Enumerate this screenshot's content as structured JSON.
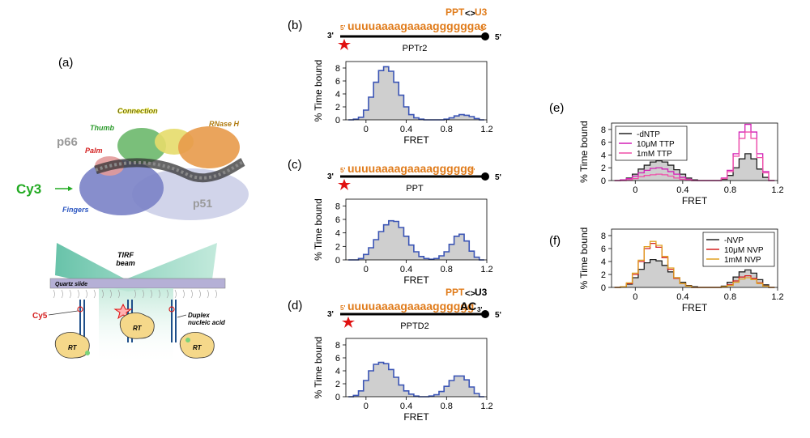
{
  "panels": {
    "a": {
      "label": "(a)",
      "domains": {
        "connection": "Connection",
        "thumb": "Thumb",
        "rnaseh": "RNase H",
        "p66": "p66",
        "palm": "Palm",
        "fingers": "Fingers",
        "p51": "p51"
      },
      "cy3": "Cy3",
      "tirf": "TIRF beam",
      "slide": "Quartz slide",
      "cy5": "Cy5",
      "duplex": "Duplex nucleic acid",
      "rt": [
        "RT",
        "RT",
        "RT"
      ]
    },
    "b": {
      "label": "(b)",
      "seq": "uuuuaaaagaaaaggggggac",
      "p5": "5'",
      "p3": "3'",
      "ppt": "PPT",
      "u3": "U3",
      "name": "PPTr2"
    },
    "c": {
      "label": "(c)",
      "seq": "uuuuaaaagaaaagggggg",
      "p5": "5'",
      "p3": "3'",
      "name": "PPT"
    },
    "d": {
      "label": "(d)",
      "seq": "uuuuaaaagaaaagggggg",
      "seq_suffix": "AC",
      "p5": "5'",
      "p3": "3'",
      "ppt": "PPT",
      "u3": "U3",
      "name": "PPTD2"
    },
    "e": {
      "label": "(e)"
    },
    "f": {
      "label": "(f)"
    },
    "strand_ends": {
      "left": "3'",
      "right": "5'"
    }
  },
  "colors": {
    "orange": "#e07b1a",
    "hist_blue": "#3b55b5",
    "gray_fill": "#cfcfcf",
    "magenta": "#d21fb5",
    "pink": "#ef4fa8",
    "red": "#d42020",
    "gold": "#e0a020",
    "star": "#e01010",
    "green_text": "#22aa22"
  },
  "chart_data": [
    {
      "type": "area",
      "panel": "b",
      "xlabel": "FRET",
      "ylabel": "% Time bound",
      "xlim": [
        -0.2,
        1.2
      ],
      "ylim": [
        0,
        9
      ],
      "xticks": [
        "0",
        "0.4",
        "0.8",
        "1.2"
      ],
      "yticks": [
        "0",
        "2",
        "4",
        "6",
        "8"
      ],
      "series": [
        {
          "color": "#3b55b5",
          "x": [
            -0.15,
            -0.1,
            -0.05,
            0,
            0.05,
            0.1,
            0.15,
            0.2,
            0.25,
            0.3,
            0.35,
            0.4,
            0.45,
            0.5,
            0.55,
            0.6,
            0.65,
            0.7,
            0.75,
            0.8,
            0.85,
            0.9,
            0.95,
            1.0,
            1.05,
            1.1,
            1.15
          ],
          "y": [
            0,
            0.1,
            0.4,
            1.5,
            3.5,
            5.8,
            7.6,
            8.2,
            7.5,
            5.8,
            3.8,
            2.0,
            0.8,
            0.3,
            0.1,
            0,
            0,
            0,
            0,
            0.1,
            0.3,
            0.6,
            0.8,
            0.7,
            0.5,
            0.2,
            0
          ]
        }
      ]
    },
    {
      "type": "area",
      "panel": "c",
      "xlabel": "FRET",
      "ylabel": "% Time bound",
      "xlim": [
        -0.2,
        1.2
      ],
      "ylim": [
        0,
        9
      ],
      "xticks": [
        "0",
        "0.4",
        "0.8",
        "1.2"
      ],
      "yticks": [
        "0",
        "2",
        "4",
        "6",
        "8"
      ],
      "series": [
        {
          "color": "#3b55b5",
          "x": [
            -0.15,
            -0.1,
            -0.05,
            0,
            0.05,
            0.1,
            0.15,
            0.2,
            0.25,
            0.3,
            0.35,
            0.4,
            0.45,
            0.5,
            0.55,
            0.6,
            0.65,
            0.7,
            0.75,
            0.8,
            0.85,
            0.9,
            0.95,
            1.0,
            1.05,
            1.1,
            1.15
          ],
          "y": [
            0,
            0,
            0.2,
            0.8,
            1.8,
            3.0,
            4.2,
            5.2,
            5.8,
            5.7,
            4.8,
            3.5,
            2.2,
            1.2,
            0.5,
            0.2,
            0.1,
            0.2,
            0.6,
            1.2,
            2.3,
            3.5,
            3.8,
            2.8,
            1.3,
            0.4,
            0
          ]
        }
      ]
    },
    {
      "type": "area",
      "panel": "d",
      "xlabel": "FRET",
      "ylabel": "% Time bound",
      "xlim": [
        -0.2,
        1.2
      ],
      "ylim": [
        0,
        9
      ],
      "xticks": [
        "0",
        "0.4",
        "0.8",
        "1.2"
      ],
      "yticks": [
        "0",
        "2",
        "4",
        "6",
        "8"
      ],
      "series": [
        {
          "color": "#3b55b5",
          "x": [
            -0.15,
            -0.1,
            -0.05,
            0,
            0.05,
            0.1,
            0.15,
            0.2,
            0.25,
            0.3,
            0.35,
            0.4,
            0.45,
            0.5,
            0.55,
            0.6,
            0.65,
            0.7,
            0.75,
            0.8,
            0.85,
            0.9,
            0.95,
            1.0,
            1.05,
            1.1,
            1.15
          ],
          "y": [
            0,
            0.2,
            0.9,
            2.5,
            4.0,
            5.0,
            5.3,
            5.1,
            4.2,
            3.0,
            1.8,
            0.9,
            0.4,
            0.1,
            0,
            0,
            0.1,
            0.3,
            0.8,
            1.6,
            2.5,
            3.2,
            3.2,
            2.6,
            1.5,
            0.5,
            0
          ]
        }
      ]
    },
    {
      "type": "line",
      "panel": "e",
      "xlabel": "FRET",
      "ylabel": "% Time bound",
      "xlim": [
        -0.2,
        1.2
      ],
      "ylim": [
        0,
        9
      ],
      "xticks": [
        "0",
        "0.4",
        "0.8",
        "1.2"
      ],
      "yticks": [
        "0",
        "2",
        "4",
        "6",
        "8"
      ],
      "legend_position": "top-left",
      "x": [
        -0.15,
        -0.1,
        -0.05,
        0,
        0.05,
        0.1,
        0.15,
        0.2,
        0.25,
        0.3,
        0.35,
        0.4,
        0.45,
        0.5,
        0.55,
        0.6,
        0.65,
        0.7,
        0.75,
        0.8,
        0.85,
        0.9,
        0.95,
        1.0,
        1.05,
        1.1,
        1.15
      ],
      "series": [
        {
          "name": "-dNTP",
          "color": "#222222",
          "fill": true,
          "values": [
            0,
            0.1,
            0.4,
            1.0,
            1.8,
            2.4,
            2.9,
            3.1,
            2.9,
            2.4,
            1.7,
            1.0,
            0.4,
            0.1,
            0,
            0,
            0,
            0,
            0.2,
            0.8,
            2.0,
            3.4,
            4.2,
            3.4,
            1.8,
            0.5,
            0
          ]
        },
        {
          "name": "10μM TTP",
          "color": "#d21fb5",
          "fill": false,
          "values": [
            0,
            0.1,
            0.3,
            0.7,
            1.2,
            1.6,
            1.9,
            2.0,
            1.8,
            1.4,
            1.0,
            0.5,
            0.2,
            0,
            0,
            0,
            0,
            0,
            0.4,
            1.6,
            4.2,
            7.6,
            8.8,
            7.6,
            4.2,
            1.4,
            0
          ]
        },
        {
          "name": "1mM TTP",
          "color": "#ef4fa8",
          "fill": false,
          "values": [
            0,
            0,
            0.1,
            0.3,
            0.6,
            0.8,
            0.9,
            1.0,
            0.9,
            0.7,
            0.4,
            0.2,
            0.1,
            0,
            0,
            0,
            0,
            0,
            0.3,
            1.4,
            3.8,
            6.6,
            7.6,
            6.6,
            3.6,
            1.2,
            0
          ]
        }
      ]
    },
    {
      "type": "line",
      "panel": "f",
      "xlabel": "FRET",
      "ylabel": "% Time bound",
      "xlim": [
        -0.2,
        1.2
      ],
      "ylim": [
        0,
        9
      ],
      "xticks": [
        "0",
        "0.4",
        "0.8",
        "1.2"
      ],
      "yticks": [
        "0",
        "2",
        "4",
        "6",
        "8"
      ],
      "legend_position": "top-right",
      "x": [
        -0.15,
        -0.1,
        -0.05,
        0,
        0.05,
        0.1,
        0.15,
        0.2,
        0.25,
        0.3,
        0.35,
        0.4,
        0.45,
        0.5,
        0.55,
        0.6,
        0.65,
        0.7,
        0.75,
        0.8,
        0.85,
        0.9,
        0.95,
        1.0,
        1.05,
        1.1,
        1.15
      ],
      "series": [
        {
          "name": "-NVP",
          "color": "#222222",
          "fill": true,
          "values": [
            0,
            0.1,
            0.5,
            1.5,
            2.8,
            3.8,
            4.3,
            4.1,
            3.4,
            2.4,
            1.5,
            0.8,
            0.3,
            0.1,
            0,
            0,
            0,
            0,
            0.2,
            0.8,
            1.6,
            2.4,
            2.7,
            2.2,
            1.2,
            0.4,
            0
          ]
        },
        {
          "name": "10μM NVP",
          "color": "#d42020",
          "fill": false,
          "values": [
            0,
            0.1,
            0.6,
            2.0,
            4.0,
            6.0,
            6.8,
            6.2,
            4.6,
            2.8,
            1.4,
            0.6,
            0.2,
            0,
            0,
            0,
            0,
            0,
            0.1,
            0.4,
            1.0,
            1.6,
            1.8,
            1.4,
            0.7,
            0.2,
            0
          ]
        },
        {
          "name": "1mM NVP",
          "color": "#e0a020",
          "fill": false,
          "values": [
            0,
            0.1,
            0.7,
            2.2,
            4.2,
            6.3,
            7.1,
            6.5,
            4.8,
            3.0,
            1.5,
            0.6,
            0.2,
            0,
            0,
            0,
            0,
            0,
            0.1,
            0.3,
            0.8,
            1.3,
            1.5,
            1.2,
            0.6,
            0.2,
            0
          ]
        }
      ]
    }
  ]
}
